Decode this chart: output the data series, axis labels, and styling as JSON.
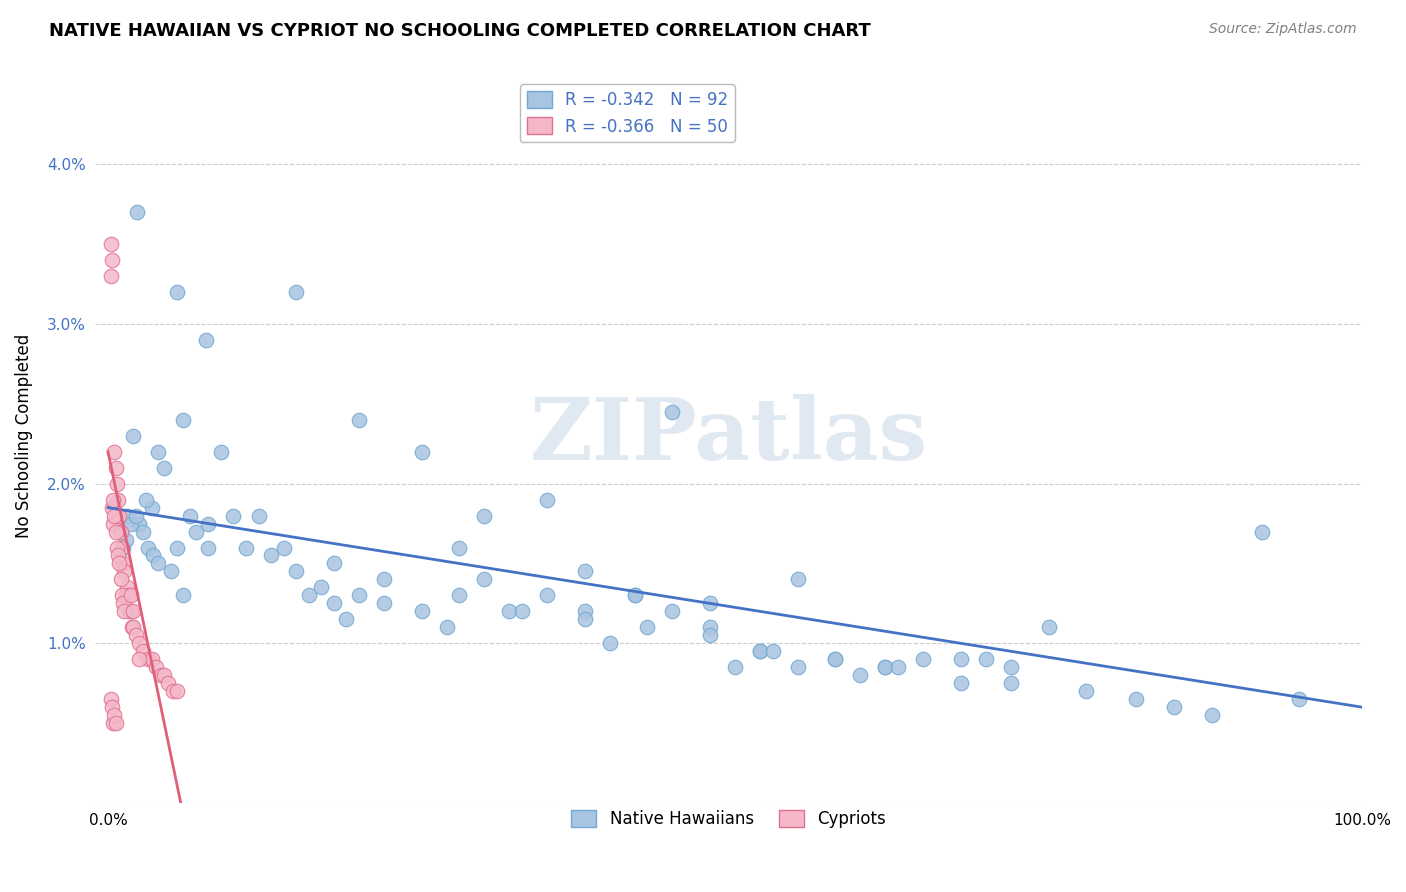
{
  "title": "NATIVE HAWAIIAN VS CYPRIOT NO SCHOOLING COMPLETED CORRELATION CHART",
  "source": "Source: ZipAtlas.com",
  "ylabel": "No Schooling Completed",
  "watermark": "ZIPatlas",
  "legend_blue_label": "Native Hawaiians",
  "legend_pink_label": "Cypriots",
  "blue_r": "-0.342",
  "blue_n": "92",
  "pink_r": "-0.366",
  "pink_n": "50",
  "blue_color": "#a8c4e0",
  "blue_edge": "#6fa8d4",
  "pink_color": "#f4b8c8",
  "pink_edge": "#e07090",
  "blue_line_color": "#4472c4",
  "pink_line_color": "#e0607a",
  "xlim": [
    -0.01,
    1.0
  ],
  "ylim": [
    0.0,
    0.046
  ],
  "yticks": [
    0.0,
    0.01,
    0.02,
    0.03,
    0.04
  ],
  "ytick_labels": [
    "",
    "1.0%",
    "2.0%",
    "3.0%",
    "4.0%"
  ],
  "blue_scatter_x": [
    0.023,
    0.055,
    0.078,
    0.12,
    0.06,
    0.04,
    0.035,
    0.045,
    0.02,
    0.03,
    0.025,
    0.015,
    0.01,
    0.012,
    0.014,
    0.018,
    0.022,
    0.028,
    0.032,
    0.036,
    0.04,
    0.05,
    0.055,
    0.06,
    0.065,
    0.07,
    0.08,
    0.09,
    0.1,
    0.11,
    0.13,
    0.15,
    0.16,
    0.17,
    0.18,
    0.19,
    0.2,
    0.22,
    0.25,
    0.27,
    0.28,
    0.3,
    0.32,
    0.35,
    0.38,
    0.4,
    0.42,
    0.45,
    0.48,
    0.5,
    0.52,
    0.55,
    0.6,
    0.62,
    0.65,
    0.68,
    0.7,
    0.72,
    0.75,
    0.45,
    0.15,
    0.2,
    0.25,
    0.3,
    0.35,
    0.55,
    0.38,
    0.42,
    0.48,
    0.52,
    0.58,
    0.62,
    0.68,
    0.72,
    0.78,
    0.82,
    0.85,
    0.88,
    0.92,
    0.95,
    0.08,
    0.14,
    0.18,
    0.22,
    0.28,
    0.33,
    0.38,
    0.43,
    0.48,
    0.53,
    0.58,
    0.63
  ],
  "blue_scatter_y": [
    0.037,
    0.032,
    0.029,
    0.018,
    0.024,
    0.022,
    0.0185,
    0.021,
    0.023,
    0.019,
    0.0175,
    0.018,
    0.017,
    0.016,
    0.0165,
    0.0175,
    0.018,
    0.017,
    0.016,
    0.0155,
    0.015,
    0.0145,
    0.016,
    0.013,
    0.018,
    0.017,
    0.016,
    0.022,
    0.018,
    0.016,
    0.0155,
    0.0145,
    0.013,
    0.0135,
    0.0125,
    0.0115,
    0.013,
    0.0125,
    0.012,
    0.011,
    0.016,
    0.014,
    0.012,
    0.013,
    0.012,
    0.01,
    0.013,
    0.012,
    0.011,
    0.0085,
    0.0095,
    0.0085,
    0.008,
    0.0085,
    0.009,
    0.0075,
    0.009,
    0.0085,
    0.011,
    0.0245,
    0.032,
    0.024,
    0.022,
    0.018,
    0.019,
    0.014,
    0.0145,
    0.013,
    0.0125,
    0.0095,
    0.009,
    0.0085,
    0.009,
    0.0075,
    0.007,
    0.0065,
    0.006,
    0.0055,
    0.017,
    0.0065,
    0.0175,
    0.016,
    0.015,
    0.014,
    0.013,
    0.012,
    0.0115,
    0.011,
    0.0105,
    0.0095,
    0.009,
    0.0085
  ],
  "pink_scatter_x": [
    0.002,
    0.003,
    0.004,
    0.005,
    0.006,
    0.007,
    0.008,
    0.009,
    0.01,
    0.011,
    0.012,
    0.013,
    0.014,
    0.015,
    0.016,
    0.017,
    0.018,
    0.019,
    0.02,
    0.022,
    0.025,
    0.028,
    0.032,
    0.035,
    0.038,
    0.042,
    0.045,
    0.048,
    0.052,
    0.055,
    0.002,
    0.003,
    0.004,
    0.005,
    0.006,
    0.007,
    0.008,
    0.009,
    0.01,
    0.011,
    0.012,
    0.013,
    0.002,
    0.003,
    0.004,
    0.005,
    0.006,
    0.018,
    0.02,
    0.025
  ],
  "pink_scatter_y": [
    0.035,
    0.034,
    0.0175,
    0.022,
    0.021,
    0.02,
    0.019,
    0.018,
    0.017,
    0.016,
    0.015,
    0.0145,
    0.013,
    0.0135,
    0.013,
    0.012,
    0.012,
    0.011,
    0.011,
    0.0105,
    0.01,
    0.0095,
    0.009,
    0.009,
    0.0085,
    0.008,
    0.008,
    0.0075,
    0.007,
    0.007,
    0.033,
    0.0185,
    0.019,
    0.018,
    0.017,
    0.016,
    0.0155,
    0.015,
    0.014,
    0.013,
    0.0125,
    0.012,
    0.0065,
    0.006,
    0.005,
    0.0055,
    0.005,
    0.013,
    0.012,
    0.009
  ],
  "blue_line_x": [
    0.0,
    1.0
  ],
  "blue_line_y": [
    0.0185,
    0.006
  ],
  "pink_line_x": [
    0.0,
    0.058
  ],
  "pink_line_y": [
    0.022,
    0.0
  ]
}
